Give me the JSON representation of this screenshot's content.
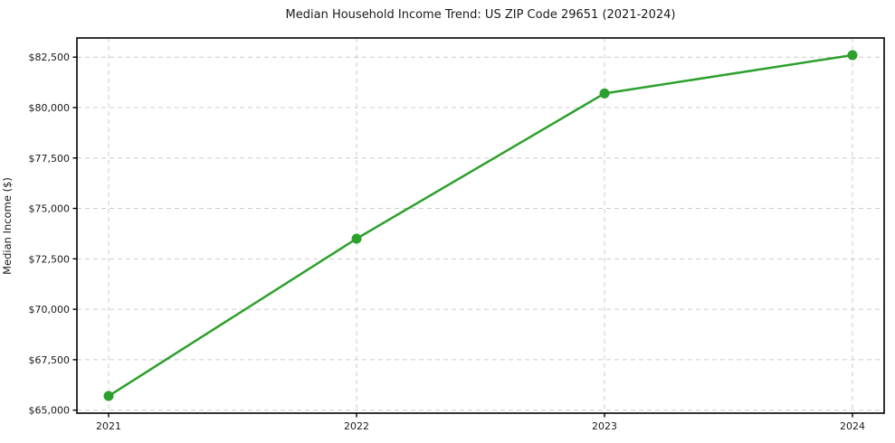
{
  "chart_data": {
    "type": "line",
    "title": "Median Household Income Trend: US ZIP Code 29651 (2021-2024)",
    "xlabel": "",
    "ylabel": "Median Income ($)",
    "categories": [
      "2021",
      "2022",
      "2023",
      "2024"
    ],
    "series": [
      {
        "name": "Median Household Income",
        "values": [
          65700,
          73500,
          80700,
          82600
        ]
      }
    ],
    "yticks": [
      65000,
      67500,
      70000,
      72500,
      75000,
      77500,
      80000,
      82500
    ],
    "ytick_labels": [
      "$65,000",
      "$67,500",
      "$70,000",
      "$72,500",
      "$75,000",
      "$77,500",
      "$80,000",
      "$82,500"
    ],
    "ylim": [
      64850,
      83450
    ],
    "grid": "dashed both axes",
    "legend_position": "none",
    "colors": {
      "line": "#2ca02c",
      "marker": "#2ca02c",
      "grid": "#cccccc",
      "spine": "#000000",
      "text": "#1a1a1a",
      "background": "#ffffff"
    }
  }
}
